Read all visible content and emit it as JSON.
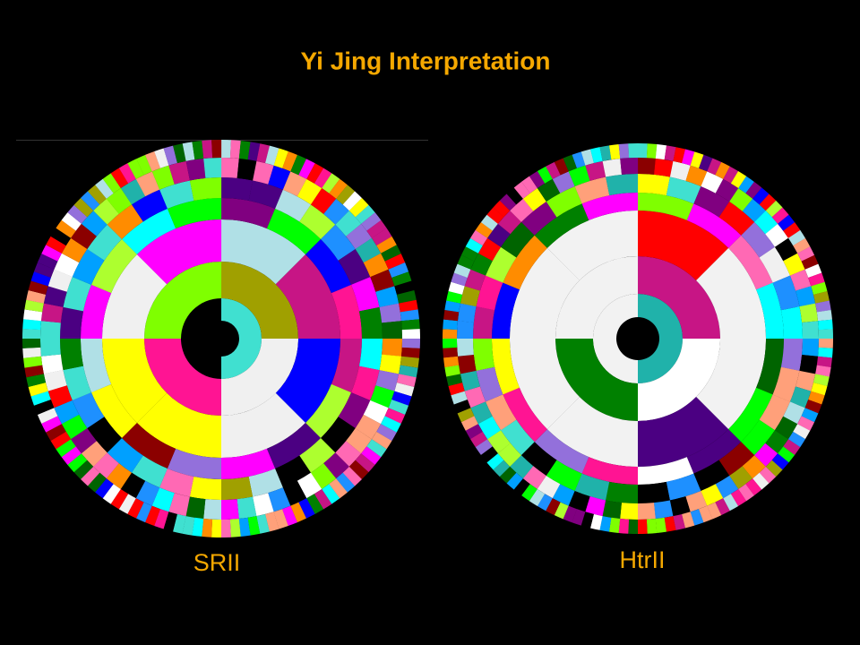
{
  "title": "Yi Jing Interpretation",
  "wheels": [
    {
      "label": "SRII"
    },
    {
      "label": "HtrII"
    }
  ]
}
